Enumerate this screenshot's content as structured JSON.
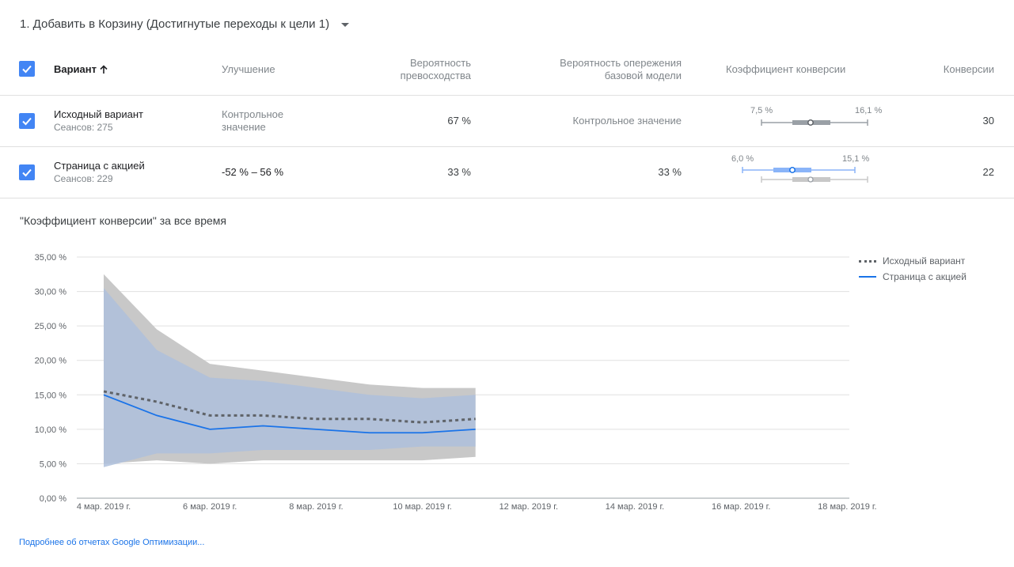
{
  "goal": {
    "title": "1. Добавить в Корзину (Достигнутые переходы к цели 1)"
  },
  "table": {
    "headers": {
      "variant": "Вариант",
      "improvement": "Улучшение",
      "prob_best_line1": "Вероятность",
      "prob_best_line2": "превосходства",
      "prob_beat_line1": "Вероятность опережения",
      "prob_beat_line2": "базовой модели",
      "conv_rate": "Коэффициент конверсии",
      "conversions": "Конверсии"
    },
    "rows": [
      {
        "name": "Исходный вариант",
        "sessions": "Сеансов: 275",
        "improvement_line1": "Контрольное",
        "improvement_line2": "значение",
        "prob_best": "67 %",
        "prob_beat": "Контрольное значение",
        "ci_low": "7,5 %",
        "ci_high": "16,1 %",
        "conversions": "30"
      },
      {
        "name": "Страница с акцией",
        "sessions": "Сеансов: 229",
        "improvement": "-52 % – 56 %",
        "prob_best": "33 %",
        "prob_beat": "33 %",
        "ci_low": "6,0 %",
        "ci_high": "15,1 %",
        "conversions": "22"
      }
    ]
  },
  "chart_title": "\"Коэффициент конверсии\" за все время",
  "chart_data": {
    "type": "line",
    "x": [
      "4 мар.",
      "5 мар.",
      "6 мар.",
      "7 мар.",
      "8 мар.",
      "9 мар.",
      "10 мар.",
      "11 мар."
    ],
    "xticks": [
      "4 мар. 2019 г.",
      "6 мар. 2019 г.",
      "8 мар. 2019 г.",
      "10 мар. 2019 г.",
      "12 мар. 2019 г.",
      "14 мар. 2019 г.",
      "16 мар. 2019 г.",
      "18 мар. 2019 г."
    ],
    "yticks": [
      "0,00 %",
      "5,00 %",
      "10,00 %",
      "15,00 %",
      "20,00 %",
      "25,00 %",
      "30,00 %",
      "35,00 %"
    ],
    "ylim": [
      0,
      35
    ],
    "xlim_days": [
      0,
      14
    ],
    "legend_position": "top-right",
    "series": [
      {
        "name": "Исходный вариант",
        "style": "dotted",
        "color": "#5f6368",
        "values": [
          15.5,
          14.0,
          12.0,
          12.0,
          11.5,
          11.5,
          11.0,
          11.5
        ],
        "upper": [
          32.5,
          24.5,
          19.5,
          18.5,
          17.5,
          16.5,
          16.0,
          16.0
        ],
        "lower": [
          5.0,
          5.5,
          5.0,
          5.5,
          5.5,
          5.5,
          5.5,
          6.0
        ],
        "band_color": "#c8c8c8"
      },
      {
        "name": "Страница с акцией",
        "style": "solid",
        "color": "#1a73e8",
        "values": [
          15.0,
          12.0,
          10.0,
          10.5,
          10.0,
          9.5,
          9.5,
          10.0
        ],
        "upper": [
          30.5,
          21.5,
          17.5,
          17.0,
          16.0,
          15.0,
          14.5,
          15.0
        ],
        "lower": [
          4.5,
          6.5,
          6.5,
          7.0,
          7.0,
          7.0,
          7.5,
          7.5
        ],
        "band_color": "#aebfdc"
      }
    ]
  },
  "footer": {
    "link": "Подробнее об отчетах Google Оптимизации..."
  },
  "colors": {
    "accent": "#4285f4",
    "baseline_bar": "#9aa0a6",
    "variant_bar": "#8ab4f8"
  }
}
